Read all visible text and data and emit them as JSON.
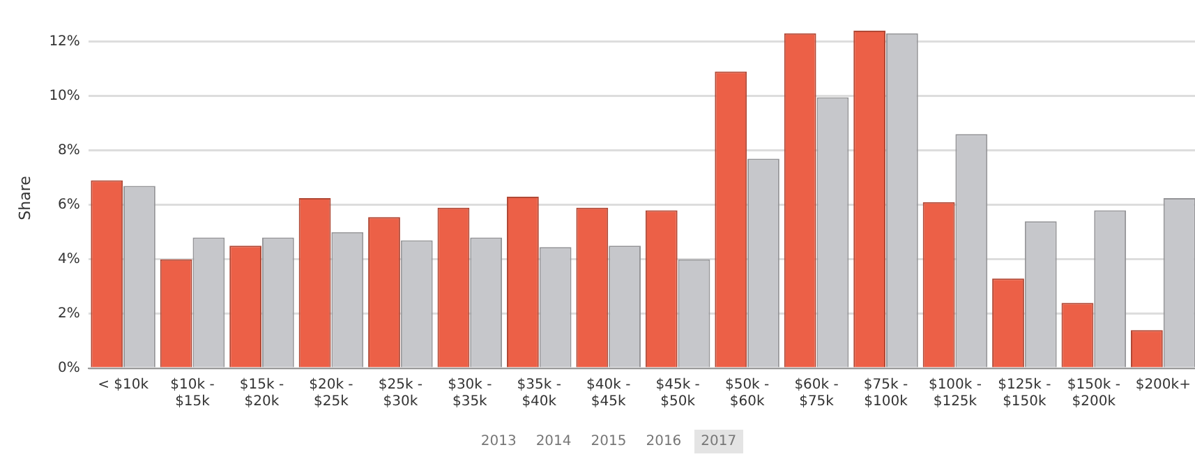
{
  "chart_data": {
    "type": "bar",
    "ylabel": "Share",
    "categories": [
      "< $10k",
      "$10k - $15k",
      "$15k - $20k",
      "$20k - $25k",
      "$25k - $30k",
      "$30k - $35k",
      "$35k - $40k",
      "$40k - $45k",
      "$45k - $50k",
      "$50k - $60k",
      "$60k - $75k",
      "$75k - $100k",
      "$100k - $125k",
      "$125k - $150k",
      "$150k - $200k",
      "$200k+"
    ],
    "series": [
      {
        "color": "#ec6047",
        "values": [
          6.9,
          4.0,
          4.5,
          6.25,
          5.55,
          5.9,
          6.3,
          5.9,
          5.8,
          10.9,
          12.3,
          12.4,
          6.1,
          3.3,
          2.4,
          1.4
        ]
      },
      {
        "color": "#c6c7cb",
        "values": [
          6.7,
          4.8,
          4.8,
          5.0,
          4.7,
          4.8,
          4.45,
          4.5,
          4.0,
          7.7,
          9.95,
          12.3,
          8.6,
          5.4,
          5.8,
          6.25
        ]
      }
    ],
    "ylim": [
      0,
      12.5
    ],
    "yticks": [
      {
        "value": 0,
        "label": "0%"
      },
      {
        "value": 2,
        "label": "2%"
      },
      {
        "value": 4,
        "label": "4%"
      },
      {
        "value": 6,
        "label": "6%"
      },
      {
        "value": 8,
        "label": "8%"
      },
      {
        "value": 10,
        "label": "10%"
      },
      {
        "value": 12,
        "label": "12%"
      }
    ],
    "grid": "y",
    "legend": false,
    "annotations": [
      "2013",
      "2014",
      "2015",
      "2016",
      "2017"
    ]
  }
}
